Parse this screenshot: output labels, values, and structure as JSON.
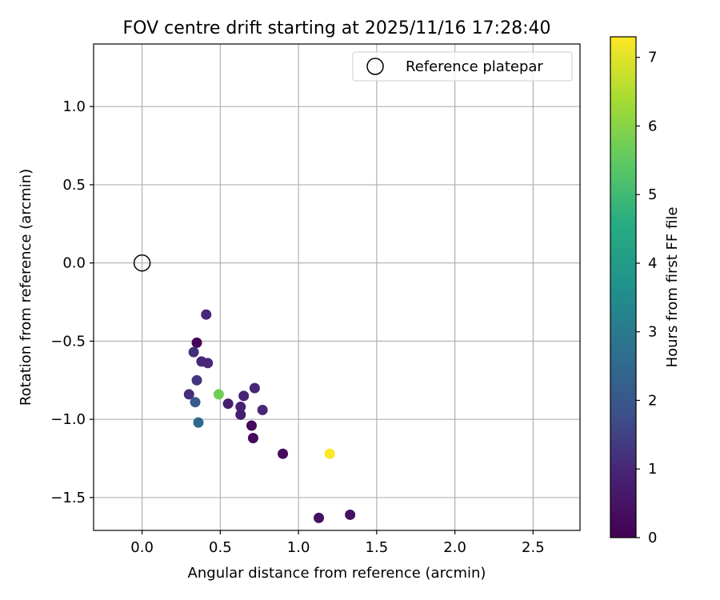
{
  "chart_data": {
    "type": "scatter",
    "title": "FOV centre drift starting at 2025/11/16 17:28:40",
    "xlabel": "Angular distance from reference (arcmin)",
    "ylabel": "Rotation from reference (arcmin)",
    "xlim": [
      -0.31,
      2.8
    ],
    "ylim": [
      -1.71,
      1.4
    ],
    "xticks": [
      0.0,
      0.5,
      1.0,
      1.5,
      2.0,
      2.5
    ],
    "xtick_labels": [
      "0.0",
      "0.5",
      "1.0",
      "1.5",
      "2.0",
      "2.5"
    ],
    "yticks": [
      1.0,
      0.5,
      0.0,
      -0.5,
      -1.0,
      -1.5
    ],
    "ytick_labels": [
      "1.0",
      "0.5",
      "0.0",
      "−0.5",
      "−1.0",
      "−1.5"
    ],
    "grid": true,
    "legend": {
      "position": "top-right",
      "label": "Reference platepar"
    },
    "reference_point": {
      "x": 0.0,
      "y": 0.0
    },
    "colorbar": {
      "label": "Hours from first FF file",
      "colormap": "viridis",
      "range": [
        0,
        7.3
      ],
      "ticks": [
        0,
        1,
        2,
        3,
        4,
        5,
        6,
        7
      ],
      "tick_labels": [
        "0",
        "1",
        "2",
        "3",
        "4",
        "5",
        "6",
        "7"
      ]
    },
    "points": [
      {
        "x": 0.41,
        "y": -0.33,
        "hours": 1.0
      },
      {
        "x": 0.35,
        "y": -0.51,
        "hours": 0.1
      },
      {
        "x": 0.33,
        "y": -0.57,
        "hours": 1.2
      },
      {
        "x": 0.38,
        "y": -0.63,
        "hours": 1.0
      },
      {
        "x": 0.42,
        "y": -0.64,
        "hours": 1.0
      },
      {
        "x": 0.35,
        "y": -0.75,
        "hours": 1.3
      },
      {
        "x": 0.3,
        "y": -0.84,
        "hours": 1.1
      },
      {
        "x": 0.49,
        "y": -0.84,
        "hours": 5.7
      },
      {
        "x": 0.34,
        "y": -0.89,
        "hours": 2.1
      },
      {
        "x": 0.55,
        "y": -0.9,
        "hours": 0.8
      },
      {
        "x": 0.65,
        "y": -0.85,
        "hours": 0.9
      },
      {
        "x": 0.72,
        "y": -0.8,
        "hours": 1.0
      },
      {
        "x": 0.63,
        "y": -0.92,
        "hours": 0.9
      },
      {
        "x": 0.63,
        "y": -0.97,
        "hours": 0.8
      },
      {
        "x": 0.77,
        "y": -0.94,
        "hours": 1.0
      },
      {
        "x": 0.36,
        "y": -1.02,
        "hours": 2.5
      },
      {
        "x": 0.7,
        "y": -1.04,
        "hours": 0.3
      },
      {
        "x": 0.71,
        "y": -1.12,
        "hours": 0.2
      },
      {
        "x": 0.9,
        "y": -1.22,
        "hours": 0.3
      },
      {
        "x": 1.2,
        "y": -1.22,
        "hours": 7.3
      },
      {
        "x": 1.13,
        "y": -1.63,
        "hours": 0.4
      },
      {
        "x": 1.33,
        "y": -1.61,
        "hours": 0.4
      }
    ]
  }
}
